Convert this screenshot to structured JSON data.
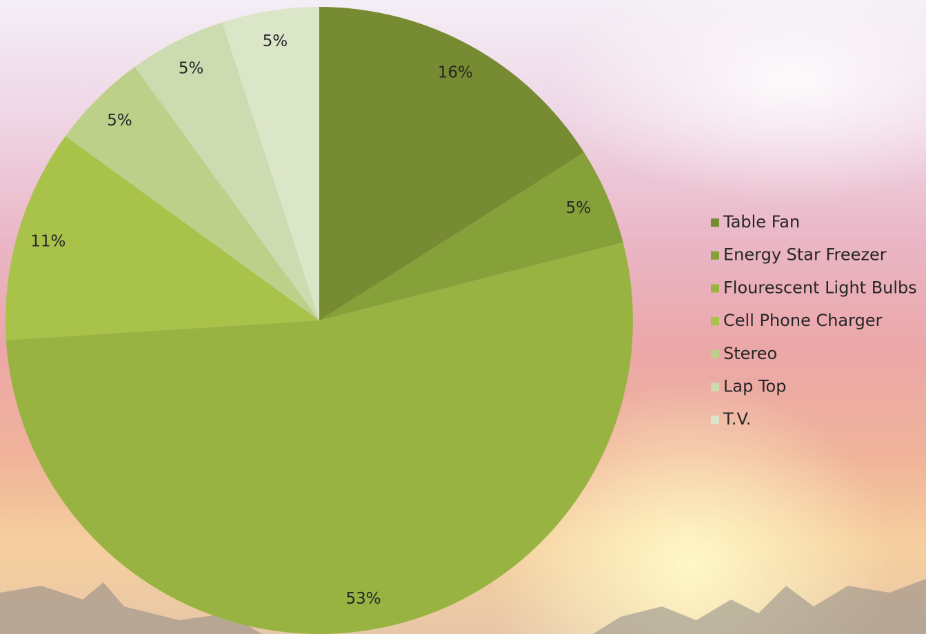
{
  "chart_data": {
    "type": "pie",
    "categories": [
      "Table Fan",
      "Energy Star Freezer",
      "Flourescent Light Bulbs",
      "Cell Phone Charger",
      "Stereo",
      "Lap Top",
      "T.V."
    ],
    "values": [
      16,
      5,
      53,
      11,
      5,
      5,
      5
    ],
    "value_labels": [
      "16%",
      "5%",
      "53%",
      "11%",
      "5%",
      "5%",
      "5%"
    ],
    "colors": [
      "#768b32",
      "#86a03a",
      "#99b342",
      "#a9c24a",
      "#bcd08a",
      "#cddcb0",
      "#dbe6c8"
    ],
    "legend": "right"
  }
}
